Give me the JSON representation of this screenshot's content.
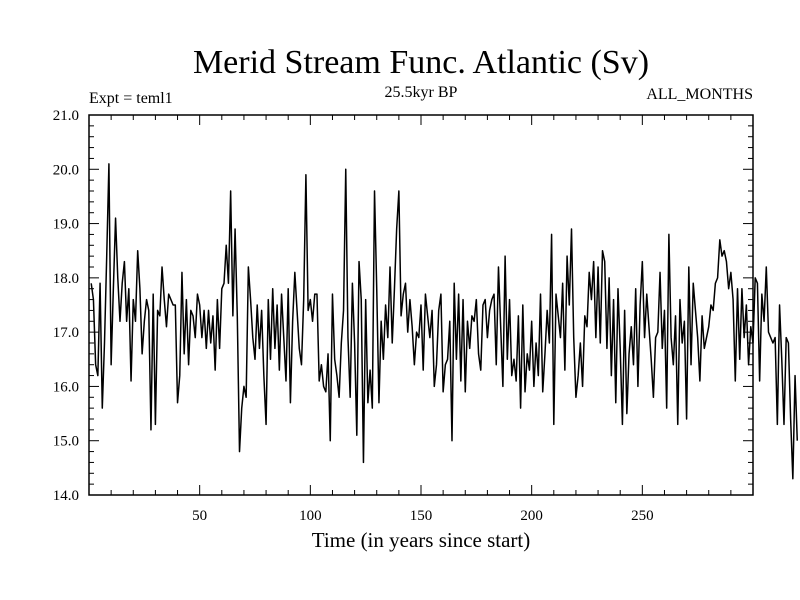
{
  "chart_data": {
    "type": "line",
    "title": "Merid Stream Func. Atlantic (Sv)",
    "subtitle_left": "Expt = teml1",
    "subtitle_center": "25.5kyr BP",
    "subtitle_right": "ALL_MONTHS",
    "xlabel": "Time (in years since start)",
    "ylabel": "",
    "xlim": [
      0,
      300
    ],
    "ylim": [
      14.0,
      21.0
    ],
    "x_ticks": [
      50,
      100,
      150,
      200,
      250
    ],
    "x_tick_labels": [
      "50",
      "100",
      "150",
      "200",
      "250"
    ],
    "y_ticks": [
      14.0,
      15.0,
      16.0,
      17.0,
      18.0,
      19.0,
      20.0,
      21.0
    ],
    "y_tick_labels": [
      "14.0",
      "15.0",
      "16.0",
      "17.0",
      "18.0",
      "19.0",
      "20.0",
      "21.0"
    ],
    "grid": false,
    "series": [
      {
        "color": "#000000",
        "x_start": 1,
        "x_step": 1,
        "values": [
          17.9,
          17.6,
          16.4,
          16.2,
          17.9,
          15.6,
          16.8,
          18.4,
          20.1,
          16.4,
          17.8,
          19.1,
          18.0,
          17.2,
          17.9,
          18.3,
          17.2,
          17.8,
          16.1,
          17.6,
          17.2,
          18.5,
          17.8,
          16.6,
          17.2,
          17.6,
          17.4,
          15.2,
          17.7,
          15.3,
          17.4,
          17.3,
          18.2,
          17.6,
          17.1,
          17.7,
          17.6,
          17.5,
          17.5,
          15.7,
          16.2,
          18.1,
          16.6,
          17.6,
          16.4,
          17.4,
          17.3,
          16.9,
          17.7,
          17.5,
          16.9,
          17.4,
          16.7,
          17.4,
          16.8,
          17.3,
          16.3,
          17.6,
          16.7,
          17.8,
          17.9,
          18.6,
          17.9,
          19.6,
          17.3,
          18.9,
          17.3,
          14.8,
          15.6,
          16.0,
          15.8,
          18.2,
          17.6,
          16.9,
          16.5,
          17.5,
          16.7,
          17.4,
          16.2,
          15.3,
          17.6,
          16.5,
          17.8,
          16.7,
          17.5,
          16.3,
          17.7,
          16.9,
          16.1,
          17.8,
          15.7,
          17.2,
          18.1,
          17.4,
          16.7,
          16.4,
          17.6,
          19.9,
          17.4,
          17.6,
          17.2,
          17.7,
          17.7,
          16.1,
          16.4,
          16.0,
          15.9,
          16.6,
          15.0,
          17.7,
          16.5,
          16.2,
          15.8,
          16.8,
          17.4,
          20.0,
          16.9,
          15.8,
          17.9,
          16.8,
          15.1,
          18.3,
          17.6,
          14.6,
          17.6,
          15.7,
          16.3,
          15.6,
          19.6,
          17.8,
          15.7,
          17.2,
          16.5,
          17.5,
          16.9,
          18.2,
          16.8,
          17.8,
          18.9,
          19.6,
          17.3,
          17.7,
          17.9,
          17.0,
          17.6,
          17.1,
          16.4,
          17.0,
          16.9,
          17.5,
          16.3,
          17.7,
          17.3,
          16.9,
          17.4,
          16.0,
          16.4,
          17.4,
          17.7,
          15.9,
          16.4,
          16.5,
          17.2,
          15.0,
          17.9,
          16.5,
          17.7,
          16.1,
          17.6,
          15.9,
          17.2,
          16.7,
          17.3,
          17.2,
          17.6,
          16.6,
          16.3,
          17.5,
          17.6,
          16.9,
          17.4,
          17.6,
          17.7,
          16.4,
          18.2,
          17.1,
          16.0,
          18.4,
          16.5,
          17.6,
          16.2,
          16.5,
          16.1,
          17.3,
          15.6,
          17.5,
          15.9,
          16.6,
          16.3,
          17.2,
          16.0,
          16.8,
          16.2,
          17.7,
          15.9,
          16.6,
          17.4,
          16.8,
          18.8,
          15.3,
          17.7,
          17.3,
          16.9,
          17.9,
          16.3,
          18.4,
          17.5,
          18.9,
          16.9,
          15.8,
          16.2,
          16.8,
          16.0,
          17.3,
          17.1,
          18.1,
          17.6,
          18.3,
          16.9,
          18.2,
          16.8,
          18.5,
          18.3,
          16.7,
          18.0,
          16.2,
          17.6,
          15.7,
          17.8,
          16.7,
          15.3,
          17.4,
          15.5,
          16.6,
          17.1,
          16.4,
          17.8,
          16.0,
          17.5,
          18.3,
          16.9,
          17.7,
          17.1,
          16.5,
          15.8,
          16.9,
          17.0,
          18.1,
          16.7,
          17.4,
          15.6,
          18.8,
          16.9,
          16.4,
          17.3,
          15.3,
          17.6,
          16.8,
          17.2,
          15.4,
          18.2,
          16.4,
          17.9,
          17.4,
          16.9,
          16.1,
          17.3,
          16.7,
          16.9,
          17.1,
          17.5,
          17.4,
          17.9,
          18.0,
          18.7,
          18.4,
          18.5,
          18.3,
          17.8,
          18.1,
          17.6,
          16.1,
          17.8,
          16.5,
          17.8,
          16.9,
          17.5,
          16.4,
          17.1,
          16.8,
          18.0,
          17.9,
          16.1,
          17.7,
          17.2,
          18.2,
          17.0,
          16.9,
          16.8,
          16.9,
          15.3,
          17.5,
          16.5,
          15.3,
          16.9,
          16.8,
          15.4,
          14.3,
          16.2,
          15.0
        ]
      }
    ]
  }
}
